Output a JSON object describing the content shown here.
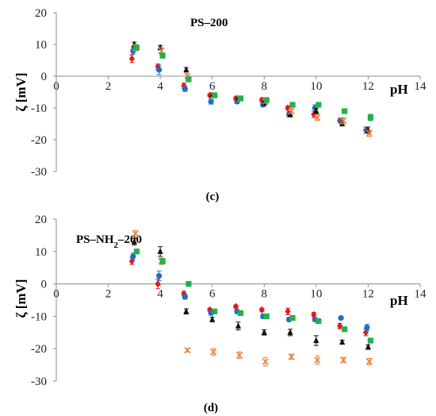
{
  "chart_data": [
    {
      "type": "scatter",
      "title": "PS–200",
      "title_sub": "",
      "title_tail": "",
      "caption": "(c)",
      "xlabel": "pH",
      "ylabel": "ζ [mV]",
      "xlim": [
        0,
        14
      ],
      "ylim": [
        -30,
        20
      ],
      "xticks": [
        "0",
        "2",
        "4",
        "6",
        "8",
        "10",
        "12",
        "14"
      ],
      "yticks": [
        "20",
        "10",
        "0",
        "-10",
        "-20",
        "-30"
      ],
      "grid": false,
      "series": [
        {
          "color": "#e8161b",
          "marker": "diamond",
          "x": [
            3,
            4,
            5,
            6,
            7,
            8,
            9,
            10,
            11,
            12
          ],
          "y": [
            5.5,
            3,
            -3,
            -6,
            -7,
            -7.5,
            -10,
            -12,
            -14,
            -17
          ],
          "err": [
            1.2,
            0.8,
            0.8,
            0.5,
            0.5,
            0.6,
            0.6,
            1,
            0.7,
            1
          ]
        },
        {
          "color": "#1f6fc5",
          "marker": "circle",
          "x": [
            3,
            4,
            5,
            6,
            7,
            8,
            9,
            10,
            11,
            12
          ],
          "y": [
            8,
            2,
            -4,
            -8,
            -8,
            -9,
            -12,
            -10,
            -14,
            -17
          ],
          "err": [
            1,
            1.5,
            0.8,
            0.8,
            0.6,
            0.6,
            0.8,
            1,
            0.6,
            1
          ]
        },
        {
          "color": "#111111",
          "marker": "triangle",
          "x": [
            3,
            4,
            5,
            6,
            7,
            8,
            9,
            10,
            11,
            12
          ],
          "y": [
            10,
            9,
            2,
            -6,
            -7,
            -8.5,
            -12,
            -11,
            -15,
            -17
          ],
          "err": [
            0.7,
            0.7,
            0.7,
            0.6,
            0.5,
            0.6,
            0.8,
            0.8,
            0.5,
            1
          ]
        },
        {
          "color": "#ed7d31",
          "marker": "cross",
          "x": [
            3,
            4,
            5,
            6,
            7,
            8,
            9,
            10,
            11,
            12
          ],
          "y": [
            9,
            8,
            0,
            -6,
            -7,
            -8,
            -11,
            -13,
            -14,
            -18
          ],
          "err": [
            1,
            1,
            0.8,
            0.6,
            0.5,
            0.5,
            0.8,
            1,
            1,
            1
          ]
        },
        {
          "color": "#22b14c",
          "marker": "square",
          "x": [
            3,
            4,
            5,
            6,
            7,
            8,
            9,
            10,
            11,
            12
          ],
          "y": [
            9,
            6.5,
            -1,
            -6,
            -7,
            -7.5,
            -9,
            -9,
            -11,
            -13
          ],
          "err": [
            0.8,
            0.8,
            0.6,
            0.5,
            0.5,
            0.5,
            0.5,
            0.5,
            0.5,
            1
          ]
        }
      ]
    },
    {
      "type": "scatter",
      "title": "PS–NH",
      "title_sub": "2",
      "title_tail": "–200",
      "caption": "(d)",
      "xlabel": "pH",
      "ylabel": "ζ [mV]",
      "xlim": [
        0,
        14
      ],
      "ylim": [
        -30,
        20
      ],
      "xticks": [
        "0",
        "2",
        "4",
        "6",
        "8",
        "10",
        "12",
        "14"
      ],
      "yticks": [
        "20",
        "10",
        "0",
        "-10",
        "-20",
        "-30"
      ],
      "grid": false,
      "series": [
        {
          "color": "#e8161b",
          "marker": "diamond",
          "x": [
            3,
            4,
            5,
            6,
            7,
            8,
            9,
            10,
            11,
            12
          ],
          "y": [
            7,
            0,
            -3,
            -8,
            -7,
            -8,
            -8.5,
            -9.5,
            -13,
            -15
          ],
          "err": [
            1,
            1.5,
            0.7,
            0.5,
            0.5,
            0.5,
            1,
            0.7,
            0.8,
            1
          ]
        },
        {
          "color": "#1f6fc5",
          "marker": "circle",
          "x": [
            3,
            4,
            5,
            6,
            7,
            8,
            9,
            10,
            11,
            12
          ],
          "y": [
            8.5,
            2.5,
            -4,
            -9,
            -8.5,
            -10,
            -11,
            -11,
            -10.5,
            -13.5
          ],
          "err": [
            1,
            1.5,
            0.7,
            0.6,
            0.6,
            0.6,
            0.6,
            0.6,
            0.5,
            1
          ]
        },
        {
          "color": "#111111",
          "marker": "triangle",
          "x": [
            3,
            4,
            5,
            6,
            7,
            8,
            9,
            10,
            11,
            12
          ],
          "y": [
            13,
            10,
            -8.5,
            -11,
            -13,
            -15,
            -15,
            -17.5,
            -18,
            -19.5
          ],
          "err": [
            1,
            1.5,
            0.8,
            0.7,
            1.2,
            0.8,
            1,
            1.5,
            0.6,
            0.7
          ]
        },
        {
          "color": "#ed7d31",
          "marker": "cross",
          "x": [
            3,
            4,
            5,
            6,
            7,
            8,
            9,
            10,
            11,
            12
          ],
          "y": [
            15.5,
            7,
            -20.5,
            -21,
            -22,
            -24,
            -22.5,
            -23.5,
            -23.5,
            -24
          ],
          "err": [
            1,
            1,
            0.5,
            1,
            1,
            1.3,
            0.8,
            1.3,
            0.8,
            1
          ]
        },
        {
          "color": "#22b14c",
          "marker": "square",
          "x": [
            3,
            4,
            5,
            6,
            7,
            8,
            9,
            10,
            11,
            12
          ],
          "y": [
            10,
            7,
            0,
            -8.5,
            -9,
            -10,
            -10.5,
            -11.5,
            -14,
            -17.5
          ],
          "err": [
            0.6,
            0.8,
            0.5,
            0.5,
            0.5,
            0.5,
            0.5,
            0.5,
            0.5,
            0.6
          ]
        }
      ]
    }
  ]
}
